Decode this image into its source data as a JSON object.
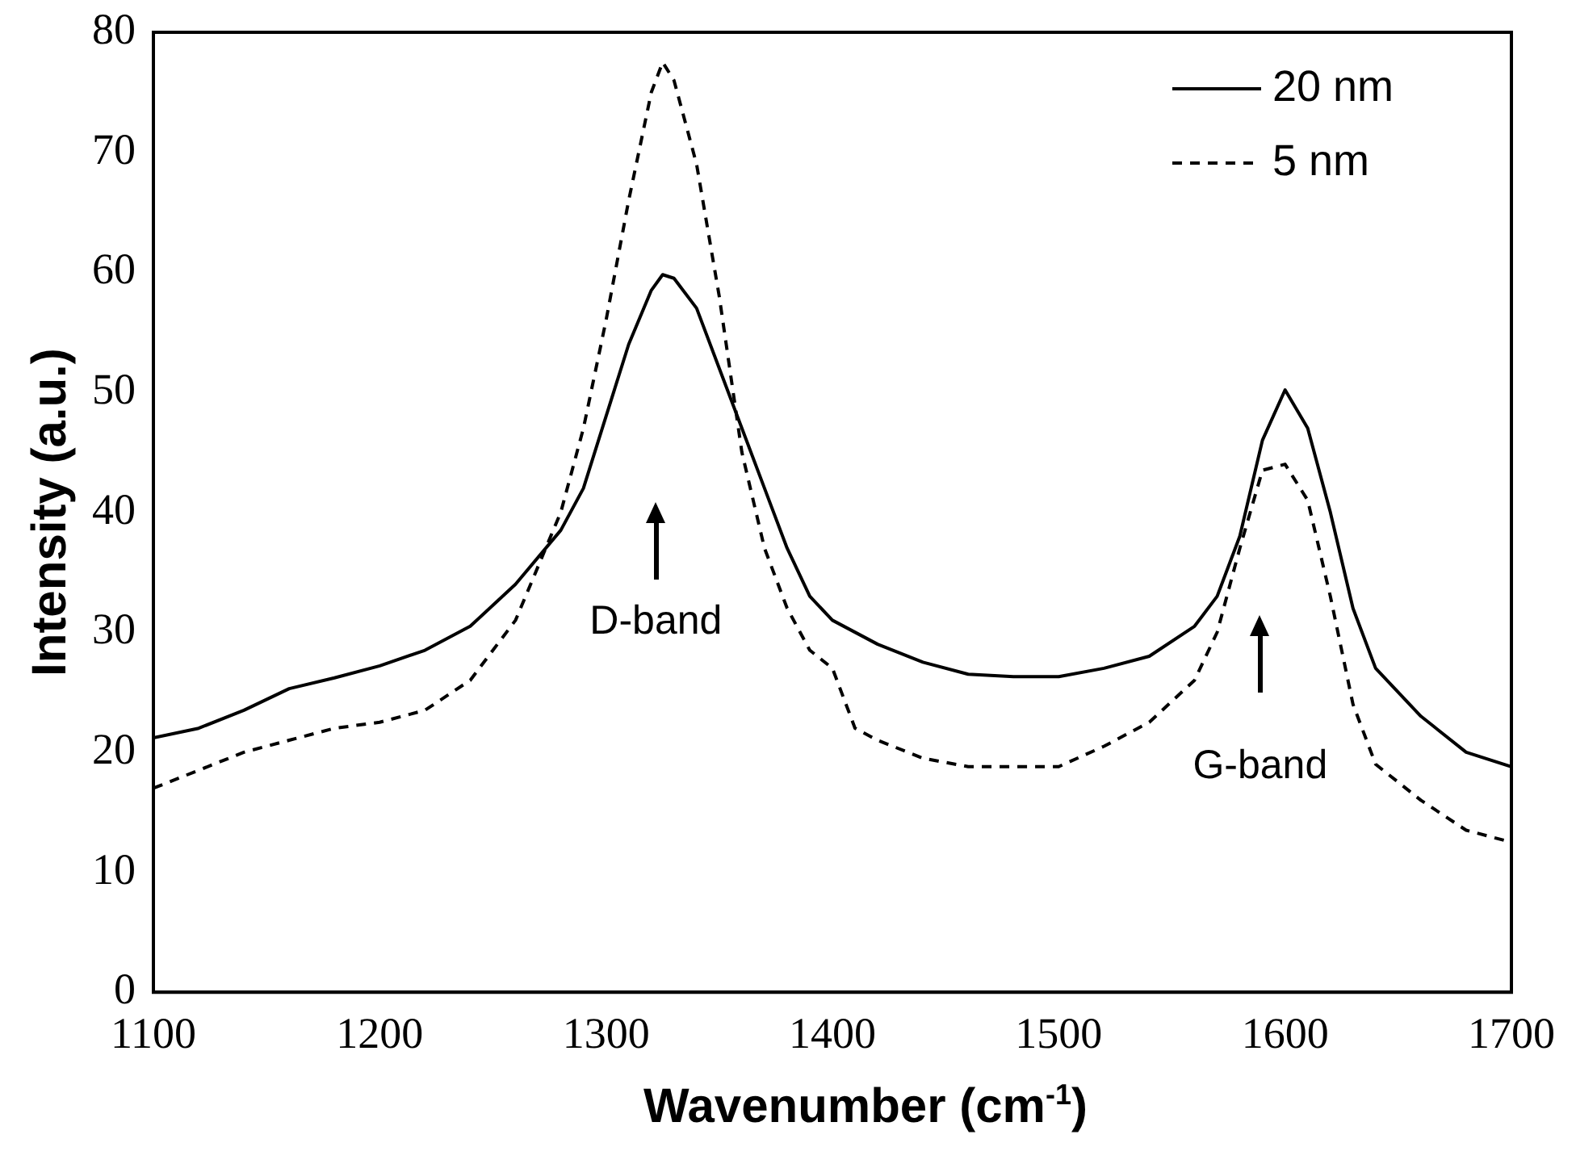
{
  "chart_data": {
    "type": "line",
    "xlabel": "Wavenumber (cm$^{-1}$)",
    "ylabel": "Intensity (a.u.)",
    "xlim": [
      1100,
      1700
    ],
    "xticks": [
      1100,
      1200,
      1300,
      1400,
      1500,
      1600,
      1700
    ],
    "ylim": [
      0,
      80
    ],
    "yticks": [
      0,
      10,
      20,
      30,
      40,
      50,
      60,
      70,
      80
    ],
    "grid": false,
    "legend": "top right",
    "marker": "none",
    "annotations": [
      "D-band",
      "G-band"
    ],
    "series": [
      {
        "name": "20 nm",
        "color": "#000000",
        "line_style": "solid",
        "x": [
          1100,
          1120,
          1140,
          1160,
          1180,
          1200,
          1220,
          1240,
          1260,
          1280,
          1290,
          1300,
          1310,
          1320,
          1325,
          1330,
          1340,
          1350,
          1360,
          1370,
          1380,
          1390,
          1400,
          1420,
          1440,
          1460,
          1480,
          1500,
          1520,
          1540,
          1560,
          1570,
          1580,
          1590,
          1600,
          1610,
          1620,
          1630,
          1640,
          1660,
          1680,
          1700
        ],
        "values": [
          21.2,
          22,
          23.5,
          25.3,
          26.2,
          27.2,
          28.5,
          30.5,
          34,
          38.5,
          42,
          48,
          54,
          58.5,
          59.8,
          59.5,
          57,
          52,
          47,
          42,
          37,
          33,
          31,
          29,
          27.5,
          26.5,
          26.3,
          26.3,
          27,
          28,
          30.5,
          33,
          38,
          46,
          50.2,
          47,
          40,
          32,
          27,
          23,
          20,
          18.8
        ]
      },
      {
        "name": "5 nm",
        "color": "#000000",
        "line_style": "dashed",
        "x": [
          1100,
          1120,
          1140,
          1160,
          1180,
          1200,
          1220,
          1240,
          1260,
          1280,
          1290,
          1300,
          1310,
          1320,
          1325,
          1330,
          1340,
          1350,
          1360,
          1370,
          1380,
          1390,
          1400,
          1410,
          1420,
          1440,
          1460,
          1480,
          1500,
          1520,
          1540,
          1560,
          1570,
          1580,
          1590,
          1600,
          1610,
          1620,
          1630,
          1640,
          1660,
          1680,
          1700
        ],
        "values": [
          17,
          18.5,
          20,
          21,
          22,
          22.5,
          23.5,
          26,
          31,
          40,
          47,
          56,
          66,
          75,
          77.5,
          76,
          69,
          58,
          45,
          37,
          32,
          28.5,
          27,
          22,
          21,
          19.5,
          18.8,
          18.8,
          18.8,
          20.5,
          22.5,
          26,
          30,
          37,
          43.5,
          44,
          41,
          33,
          24,
          19,
          16,
          13.5,
          12.5
        ]
      }
    ]
  }
}
